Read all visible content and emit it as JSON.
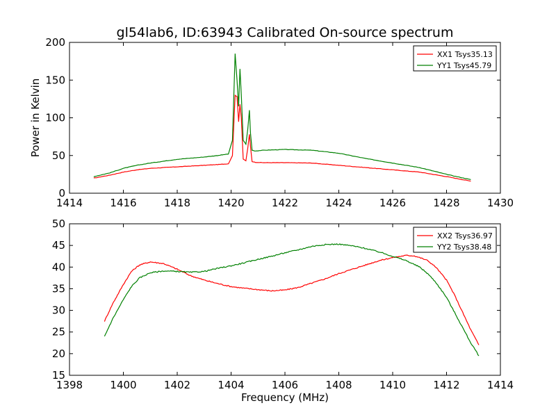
{
  "figure": {
    "title": "gl54lab6, ID:63943 Calibrated On-source spectrum"
  },
  "chart_data": [
    {
      "type": "line",
      "title": "gl54lab6, ID:63943 Calibrated On-source spectrum",
      "xlabel": "",
      "ylabel": "Power in Kelvin",
      "xlim": [
        1414,
        1430
      ],
      "ylim": [
        0,
        200
      ],
      "xticks": [
        1414,
        1416,
        1418,
        1420,
        1422,
        1424,
        1426,
        1428,
        1430
      ],
      "yticks": [
        0,
        50,
        100,
        150,
        200
      ],
      "grid": false,
      "legend": "top-right",
      "series": [
        {
          "name": "XX1 Tsys35.13",
          "color": "#ff0000",
          "x": [
            1414.9,
            1415.5,
            1416,
            1416.5,
            1417,
            1418,
            1419,
            1419.5,
            1419.9,
            1420.05,
            1420.15,
            1420.22,
            1420.28,
            1420.33,
            1420.38,
            1420.45,
            1420.55,
            1420.62,
            1420.68,
            1420.72,
            1420.78,
            1420.9,
            1421.2,
            1422,
            1423,
            1424,
            1425,
            1426,
            1427,
            1428,
            1428.9
          ],
          "y": [
            20,
            24,
            28,
            31,
            33,
            35,
            37,
            38,
            39,
            50,
            130,
            128,
            95,
            118,
            100,
            45,
            43,
            60,
            78,
            62,
            42,
            41,
            40.5,
            40.5,
            40,
            37,
            34,
            31,
            28,
            22,
            16
          ]
        },
        {
          "name": "YY1 Tsys45.79",
          "color": "#008000",
          "x": [
            1414.9,
            1415.5,
            1416,
            1416.5,
            1417,
            1418,
            1419,
            1419.5,
            1419.9,
            1420.05,
            1420.15,
            1420.22,
            1420.28,
            1420.33,
            1420.38,
            1420.45,
            1420.55,
            1420.62,
            1420.68,
            1420.72,
            1420.78,
            1420.9,
            1421.2,
            1422,
            1423,
            1424,
            1425,
            1426,
            1427,
            1428,
            1428.9
          ],
          "y": [
            22,
            27,
            33,
            37,
            40,
            45,
            48,
            50,
            52,
            70,
            185,
            150,
            115,
            165,
            130,
            70,
            65,
            85,
            110,
            80,
            57,
            56,
            57,
            58,
            57,
            53,
            46,
            40,
            34,
            25,
            18
          ]
        }
      ]
    },
    {
      "type": "line",
      "title": "",
      "xlabel": "Frequency (MHz)",
      "ylabel": "",
      "xlim": [
        1398,
        1414
      ],
      "ylim": [
        15,
        50
      ],
      "xticks": [
        1398,
        1400,
        1402,
        1404,
        1406,
        1408,
        1410,
        1412,
        1414
      ],
      "yticks": [
        15,
        20,
        25,
        30,
        35,
        40,
        45,
        50
      ],
      "grid": false,
      "legend": "top-right",
      "series": [
        {
          "name": "XX2 Tsys36.97",
          "color": "#ff0000",
          "x": [
            1399.3,
            1399.6,
            1400,
            1400.3,
            1400.6,
            1401,
            1401.5,
            1402,
            1402.5,
            1403,
            1403.5,
            1404,
            1404.5,
            1405,
            1405.5,
            1406,
            1406.5,
            1407,
            1407.5,
            1408,
            1408.5,
            1409,
            1409.5,
            1410,
            1410.5,
            1410.8,
            1411,
            1411.3,
            1411.6,
            1412,
            1412.3,
            1412.6,
            1412.9,
            1413.2
          ],
          "y": [
            27.5,
            31.5,
            36,
            39,
            40.5,
            41.2,
            40.8,
            39.5,
            38,
            37,
            36.2,
            35.5,
            35.1,
            34.8,
            34.5,
            34.7,
            35.3,
            36.3,
            37.3,
            38.5,
            39.5,
            40.5,
            41.5,
            42.2,
            42.7,
            42.6,
            42.2,
            41.5,
            40,
            37,
            33.5,
            29.5,
            25.5,
            22
          ]
        },
        {
          "name": "YY2 Tsys38.48",
          "color": "#008000",
          "x": [
            1399.3,
            1399.6,
            1400,
            1400.3,
            1400.6,
            1401,
            1401.5,
            1402,
            1402.5,
            1403,
            1403.5,
            1404,
            1404.5,
            1405,
            1405.5,
            1406,
            1406.5,
            1407,
            1407.5,
            1408,
            1408.5,
            1409,
            1409.5,
            1410,
            1410.5,
            1411,
            1411.3,
            1411.6,
            1412,
            1412.3,
            1412.6,
            1412.9,
            1413.2
          ],
          "y": [
            24,
            28,
            32.5,
            35.5,
            37.5,
            38.7,
            39.1,
            39,
            38.8,
            39,
            39.7,
            40.3,
            41,
            41.8,
            42.5,
            43.3,
            44,
            44.8,
            45.2,
            45.3,
            44.9,
            44.3,
            43.5,
            42.5,
            41.5,
            40,
            38.5,
            36.5,
            33,
            29.5,
            26,
            22.5,
            19.5
          ]
        }
      ]
    }
  ]
}
